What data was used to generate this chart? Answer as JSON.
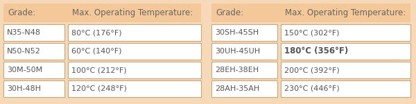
{
  "bg_color": "#f5d9b8",
  "cell_bg": "#ffffff",
  "header_bg": "#f5c89a",
  "border_color": "#c8a87a",
  "text_color": "#555555",
  "header_text_color": "#666666",
  "left_headers": [
    "Grade:",
    "Max. Operating Temperature:"
  ],
  "right_headers": [
    "Grade:",
    "Max. Operating Temperature:"
  ],
  "left_data": [
    [
      "N35-N48",
      "80°C (176°F)"
    ],
    [
      "N50-N52",
      "60°C (140°F)"
    ],
    [
      "30M-50M",
      "100°C (212°F)"
    ],
    [
      "30H-48H",
      "120°C (248°F)"
    ]
  ],
  "right_data": [
    [
      "30SH-45SH",
      "150°C (302°F)"
    ],
    [
      "30UH-45UH",
      "180°C (356°F)"
    ],
    [
      "28EH-38EH",
      "200°C (392°F)"
    ],
    [
      "28AH-35AH",
      "230°C (446°F)"
    ]
  ],
  "bold_row": 1,
  "figsize": [
    6.0,
    1.5
  ],
  "dpi": 100
}
